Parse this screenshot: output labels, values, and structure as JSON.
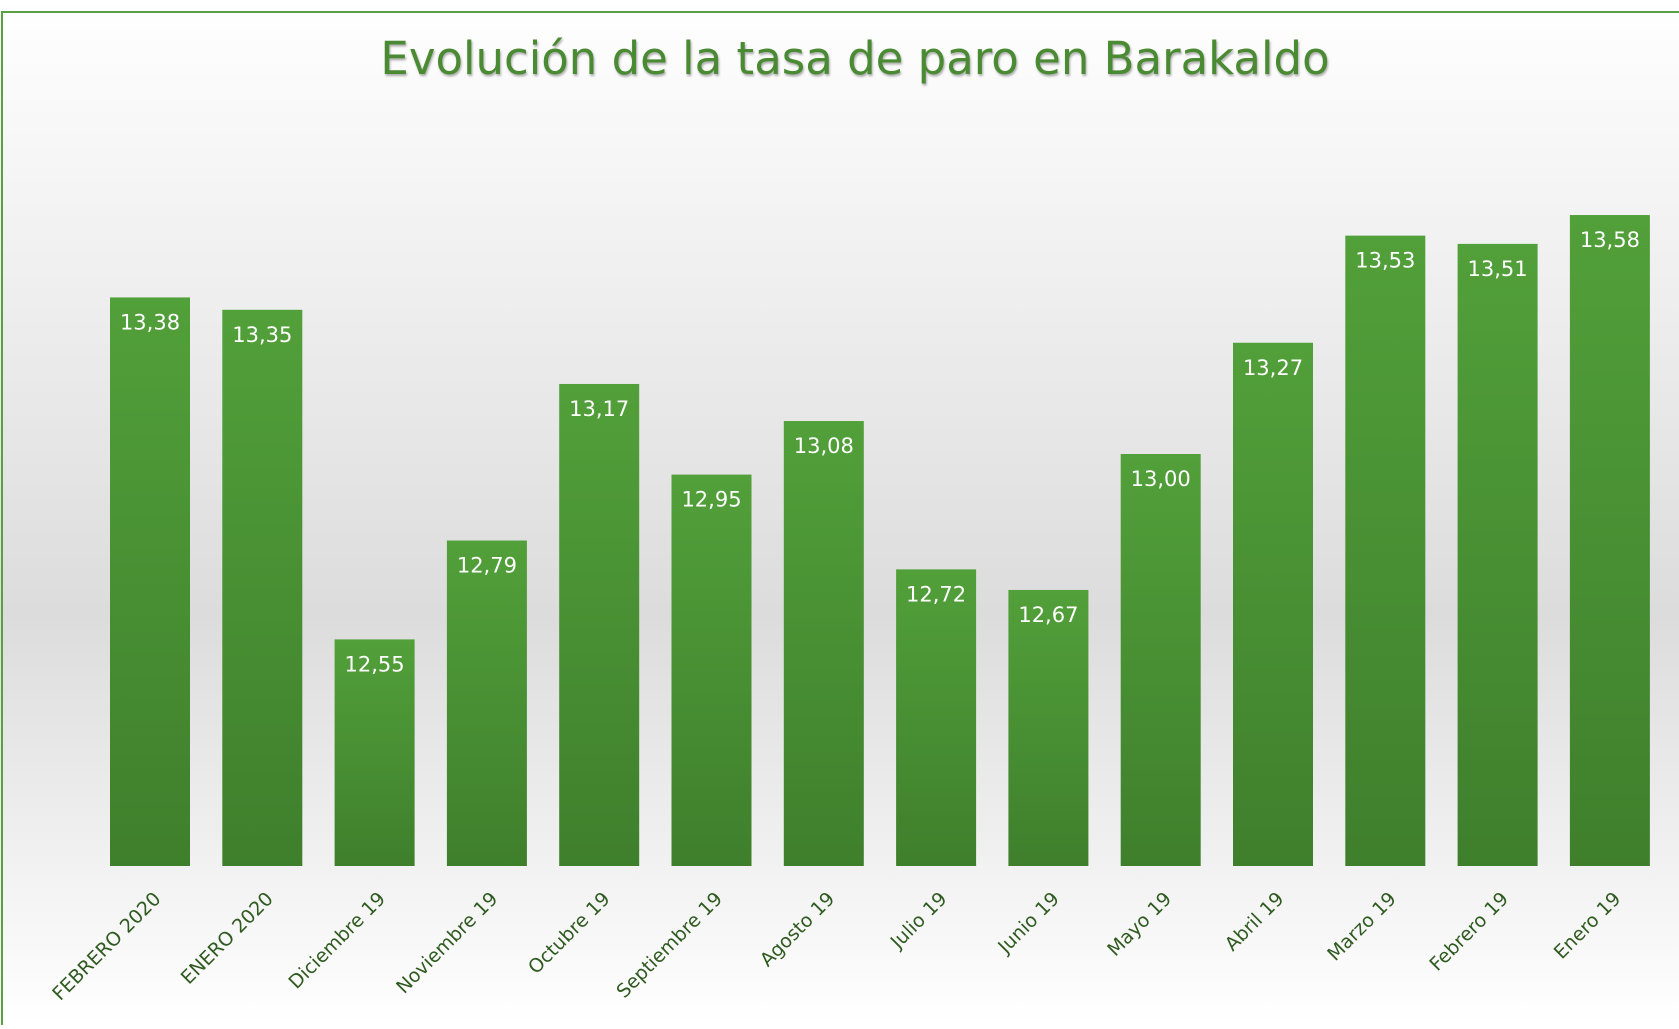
{
  "chart_data": {
    "type": "bar",
    "title": "Evolución de la tasa de paro en Barakaldo",
    "categories": [
      "FEBRERO 2020",
      "ENERO 2020",
      "Diciembre 19",
      "Noviembre 19",
      "Octubre 19",
      "Septiembre 19",
      "Agosto 19",
      "Julio 19",
      "Junio 19",
      "Mayo 19",
      "Abril 19",
      "Marzo 19",
      "Febrero 19",
      "Enero 19"
    ],
    "values": [
      13.38,
      13.35,
      12.55,
      12.79,
      13.17,
      12.95,
      13.08,
      12.72,
      12.67,
      13.0,
      13.27,
      13.53,
      13.51,
      13.58
    ],
    "value_labels": [
      "13,38",
      "13,35",
      "12,55",
      "12,79",
      "13,17",
      "12,95",
      "13,08",
      "12,72",
      "12,67",
      "13,00",
      "13,27",
      "13,53",
      "13,51",
      "13,58"
    ],
    "color": "#4e9a36",
    "ylim": [
      12,
      14
    ]
  }
}
